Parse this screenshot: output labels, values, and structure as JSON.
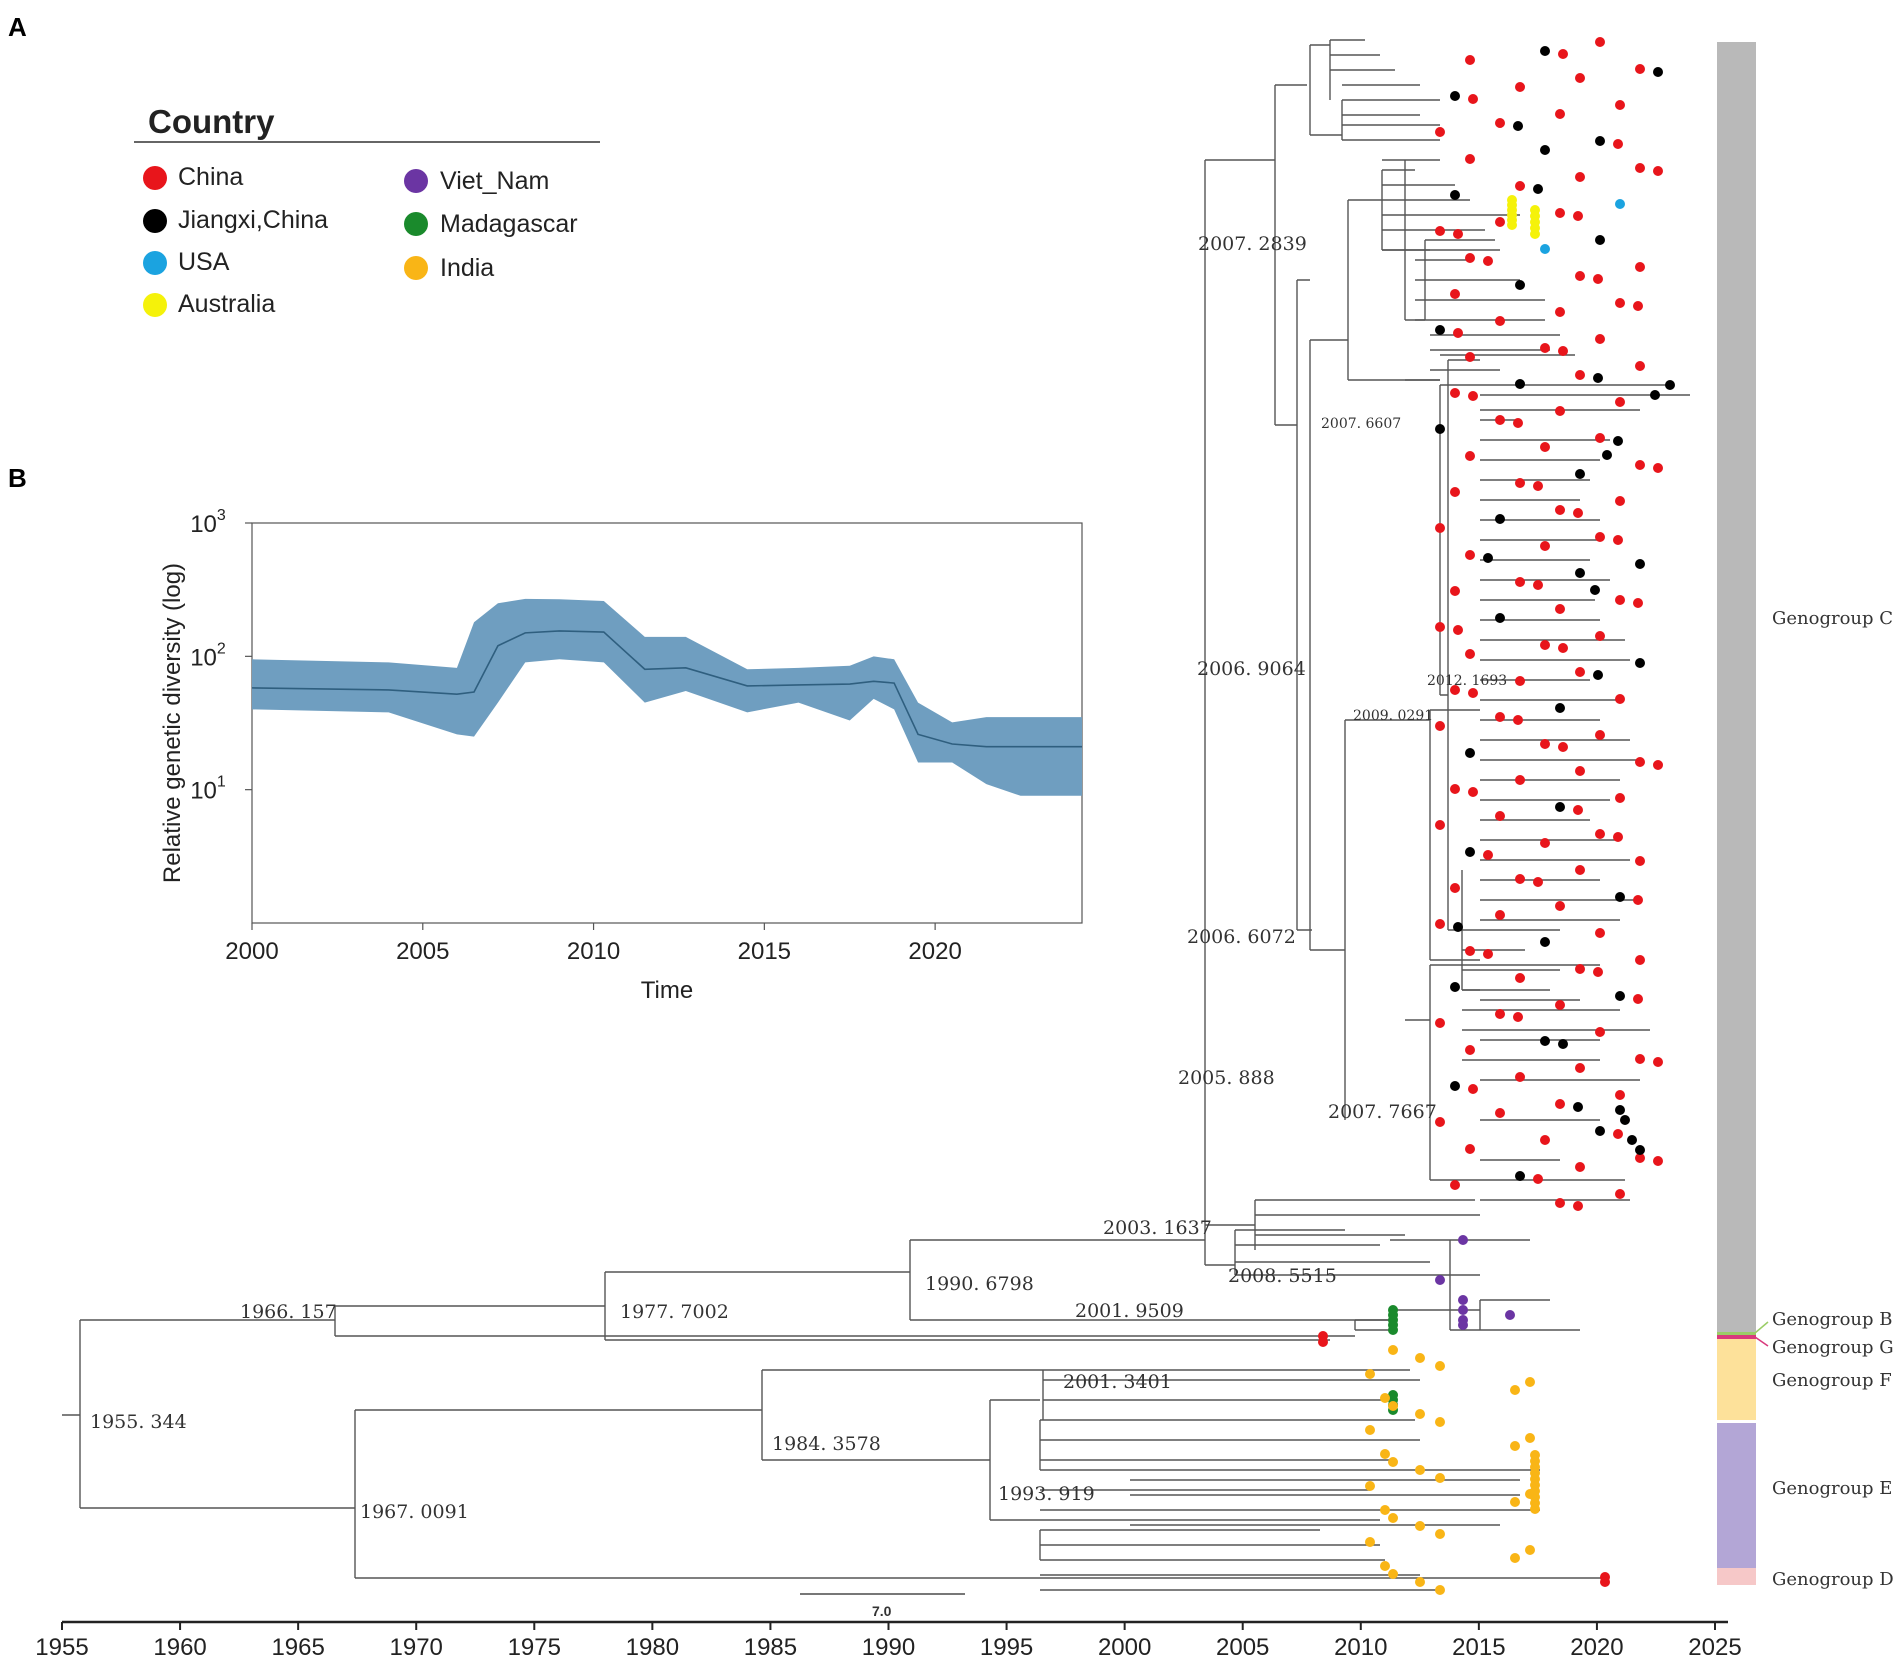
{
  "panels": {
    "a": "A",
    "b": "B"
  },
  "legend": {
    "title": "Country",
    "items": [
      {
        "label": "China",
        "color": "#e8151b"
      },
      {
        "label": "Jiangxi,China",
        "color": "#000000"
      },
      {
        "label": "USA",
        "color": "#1ba3e0"
      },
      {
        "label": "Australia",
        "color": "#f5f20a"
      },
      {
        "label": "Viet_Nam",
        "color": "#6b35a3"
      },
      {
        "label": "Madagascar",
        "color": "#1a8a2c"
      },
      {
        "label": "India",
        "color": "#f9b516"
      }
    ]
  },
  "tree": {
    "node_labels": [
      "1955. 344",
      "1966. 157",
      "1967. 0091",
      "1977. 7002",
      "1984. 3578",
      "1990. 6798",
      "1993. 919",
      "2001. 3401",
      "2001. 9509",
      "2003. 1637",
      "2005. 888",
      "2006. 6072",
      "2006. 9064",
      "2007. 2839",
      "2007. 6607",
      "2007. 7667",
      "2008. 5515",
      "2009. 0291",
      "2012. 1693"
    ],
    "scale_bar": "7.0",
    "time_axis": {
      "ticks": [
        "1955",
        "1960",
        "1965",
        "1970",
        "1975",
        "1980",
        "1985",
        "1990",
        "1995",
        "2000",
        "2005",
        "2010",
        "2015",
        "2020",
        "2025"
      ]
    },
    "genogroups": [
      {
        "label": "Genogroup C",
        "color": "#b9b9b9"
      },
      {
        "label": "Genogroup B",
        "color": "#9acd66"
      },
      {
        "label": "Genogroup G",
        "color": "#d83a7c"
      },
      {
        "label": "Genogroup F",
        "color": "#fde19a"
      },
      {
        "label": "Genogroup E",
        "color": "#b3a6d6"
      },
      {
        "label": "Genogroup D",
        "color": "#f6c8c8"
      }
    ]
  },
  "chart_data": {
    "type": "area",
    "title": "",
    "xlabel": "Time",
    "ylabel": "Relative genetic diversity (log)",
    "xlim": [
      2000,
      2024.3
    ],
    "ylim": [
      1,
      1000
    ],
    "y_scale": "log",
    "xticks": [
      "2000",
      "2005",
      "2010",
      "2015",
      "2020"
    ],
    "yticks": [
      {
        "base": "10",
        "exp": "1",
        "value": 10
      },
      {
        "base": "10",
        "exp": "2",
        "value": 100
      },
      {
        "base": "10",
        "exp": "3",
        "value": 1000
      }
    ],
    "fill_color": "#6f9ec0",
    "line_color": "#2f5f7f",
    "series": [
      {
        "name": "median",
        "x": [
          2000,
          2004,
          2006,
          2006.5,
          2007.2,
          2008,
          2009,
          2010.3,
          2011.5,
          2012.7,
          2014.5,
          2016,
          2017.5,
          2018.2,
          2018.8,
          2019.5,
          2020.5,
          2021.5,
          2022.5,
          2024.3
        ],
        "values": [
          58,
          56,
          52,
          54,
          120,
          150,
          155,
          152,
          80,
          82,
          60,
          61,
          62,
          65,
          63,
          26,
          22,
          21,
          21,
          21
        ]
      },
      {
        "name": "upper 95% HPD",
        "x": [
          2000,
          2004,
          2006,
          2006.5,
          2007.2,
          2008,
          2009,
          2010.3,
          2011.5,
          2012.7,
          2014.5,
          2016,
          2017.5,
          2018.2,
          2018.8,
          2019.5,
          2020.5,
          2021.5,
          2022.5,
          2024.3
        ],
        "values": [
          95,
          90,
          82,
          180,
          250,
          270,
          268,
          260,
          140,
          140,
          80,
          82,
          85,
          100,
          95,
          45,
          32,
          35,
          35,
          35
        ]
      },
      {
        "name": "lower 95% HPD",
        "x": [
          2000,
          2004,
          2006,
          2006.5,
          2007.2,
          2008,
          2009,
          2010.3,
          2011.5,
          2012.7,
          2014.5,
          2016,
          2017.5,
          2018.2,
          2018.8,
          2019.5,
          2020.5,
          2021.5,
          2022.5,
          2024.3
        ],
        "values": [
          40,
          38,
          26,
          25,
          45,
          90,
          95,
          90,
          45,
          55,
          38,
          45,
          33,
          48,
          40,
          16,
          16,
          11,
          9,
          9
        ]
      }
    ]
  }
}
